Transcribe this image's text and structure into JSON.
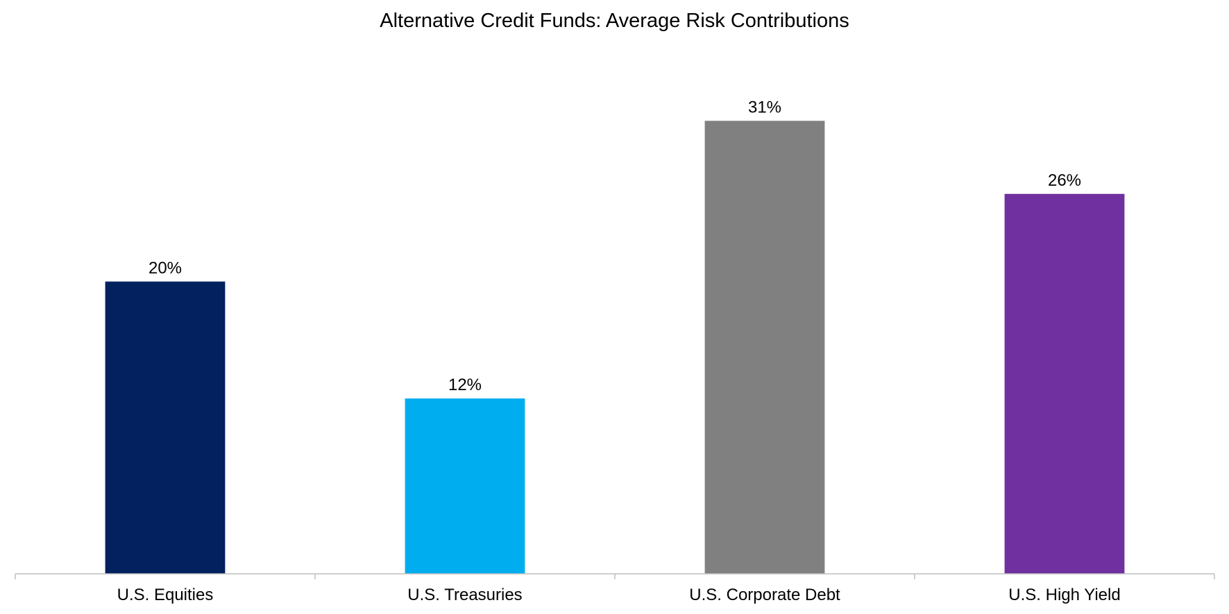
{
  "chart_data": {
    "type": "bar",
    "title": "Alternative Credit Funds: Average Risk Contributions",
    "xlabel": "",
    "ylabel": "",
    "categories": [
      "U.S. Equities",
      "U.S. Treasuries",
      "U.S. Corporate Debt",
      "U.S. High Yield"
    ],
    "values": [
      20,
      12,
      31,
      26
    ],
    "data_labels": [
      "20%",
      "12%",
      "31%",
      "26%"
    ],
    "colors": [
      "#03215E",
      "#00AEEF",
      "#808080",
      "#7030A0"
    ],
    "axis_color": "#BFBFBF",
    "ylim": [
      0,
      35
    ],
    "grid": false,
    "legend": "none"
  }
}
